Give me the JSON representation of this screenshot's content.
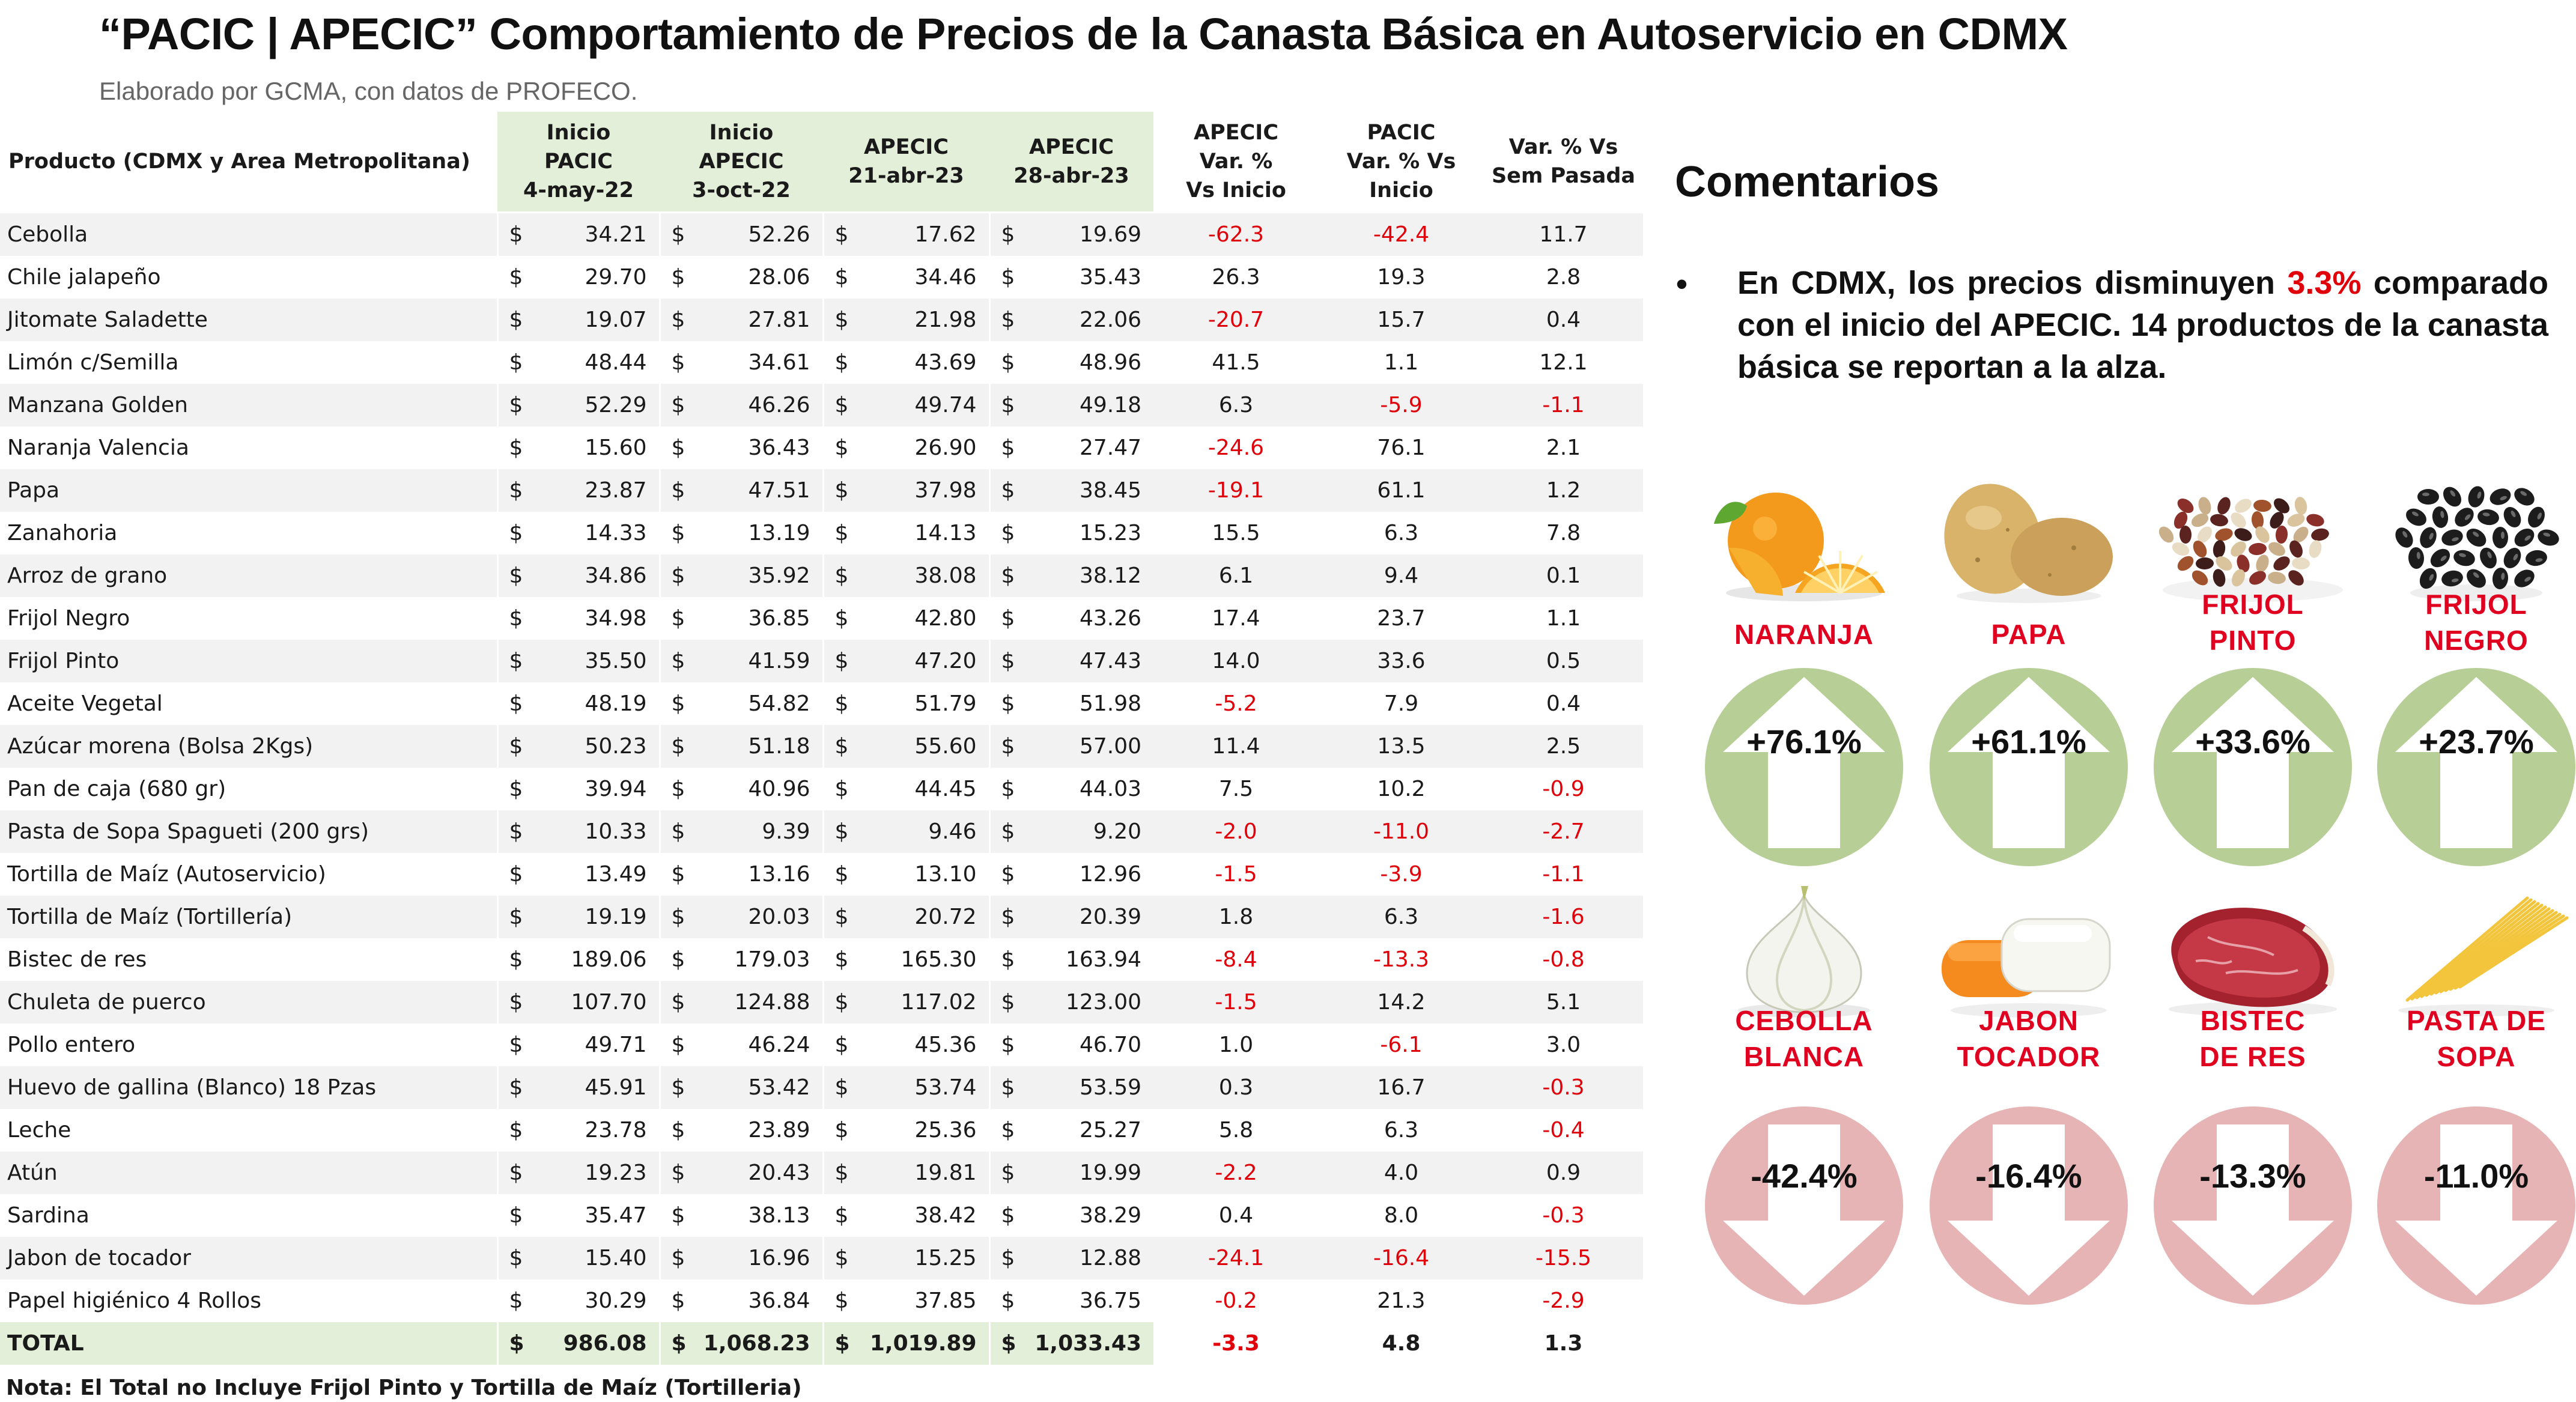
{
  "header": {
    "title": "“PACIC | APECIC” Comportamiento de Precios de la Canasta Básica en Autoservicio en CDMX",
    "subtitle": "Elaborado por GCMA, con datos de PROFECO."
  },
  "table": {
    "columns": [
      "Producto (CDMX y Area Metropolitana)",
      "Inicio PACIC 4-may-22",
      "Inicio APECIC 3-oct-22",
      "APECIC 21-abr-23",
      "APECIC 28-abr-23",
      "APECIC Var. % Vs Inicio",
      "PACIC Var. % Vs Inicio",
      "Var. % Vs Sem Pasada"
    ],
    "header_lines": [
      [
        "Producto (CDMX y Area Metropolitana)"
      ],
      [
        "Inicio",
        "PACIC",
        "4-may-22"
      ],
      [
        "Inicio",
        "APECIC",
        "3-oct-22"
      ],
      [
        "APECIC",
        "21-abr-23"
      ],
      [
        "APECIC",
        "28-abr-23"
      ],
      [
        "APECIC",
        "Var. %",
        "Vs Inicio"
      ],
      [
        "PACIC",
        "Var. % Vs",
        "Inicio"
      ],
      [
        "Var. % Vs",
        "Sem Pasada"
      ]
    ],
    "currency_symbol": "$",
    "rows": [
      [
        "Cebolla",
        "34.21",
        "52.26",
        "17.62",
        "19.69",
        "-62.3",
        "-42.4",
        "11.7"
      ],
      [
        "Chile jalapeño",
        "29.70",
        "28.06",
        "34.46",
        "35.43",
        "26.3",
        "19.3",
        "2.8"
      ],
      [
        "Jitomate Saladette",
        "19.07",
        "27.81",
        "21.98",
        "22.06",
        "-20.7",
        "15.7",
        "0.4"
      ],
      [
        "Limón c/Semilla",
        "48.44",
        "34.61",
        "43.69",
        "48.96",
        "41.5",
        "1.1",
        "12.1"
      ],
      [
        "Manzana Golden",
        "52.29",
        "46.26",
        "49.74",
        "49.18",
        "6.3",
        "-5.9",
        "-1.1"
      ],
      [
        "Naranja Valencia",
        "15.60",
        "36.43",
        "26.90",
        "27.47",
        "-24.6",
        "76.1",
        "2.1"
      ],
      [
        "Papa",
        "23.87",
        "47.51",
        "37.98",
        "38.45",
        "-19.1",
        "61.1",
        "1.2"
      ],
      [
        "Zanahoria",
        "14.33",
        "13.19",
        "14.13",
        "15.23",
        "15.5",
        "6.3",
        "7.8"
      ],
      [
        "Arroz de grano",
        "34.86",
        "35.92",
        "38.08",
        "38.12",
        "6.1",
        "9.4",
        "0.1"
      ],
      [
        "Frijol Negro",
        "34.98",
        "36.85",
        "42.80",
        "43.26",
        "17.4",
        "23.7",
        "1.1"
      ],
      [
        "Frijol Pinto",
        "35.50",
        "41.59",
        "47.20",
        "47.43",
        "14.0",
        "33.6",
        "0.5"
      ],
      [
        "Aceite Vegetal",
        "48.19",
        "54.82",
        "51.79",
        "51.98",
        "-5.2",
        "7.9",
        "0.4"
      ],
      [
        "Azúcar morena (Bolsa 2Kgs)",
        "50.23",
        "51.18",
        "55.60",
        "57.00",
        "11.4",
        "13.5",
        "2.5"
      ],
      [
        "Pan de caja (680 gr)",
        "39.94",
        "40.96",
        "44.45",
        "44.03",
        "7.5",
        "10.2",
        "-0.9"
      ],
      [
        "Pasta de Sopa Spagueti (200 grs)",
        "10.33",
        "9.39",
        "9.46",
        "9.20",
        "-2.0",
        "-11.0",
        "-2.7"
      ],
      [
        "Tortilla de Maíz (Autoservicio)",
        "13.49",
        "13.16",
        "13.10",
        "12.96",
        "-1.5",
        "-3.9",
        "-1.1"
      ],
      [
        "Tortilla de Maíz (Tortillería)",
        "19.19",
        "20.03",
        "20.72",
        "20.39",
        "1.8",
        "6.3",
        "-1.6"
      ],
      [
        "Bistec de res",
        "189.06",
        "179.03",
        "165.30",
        "163.94",
        "-8.4",
        "-13.3",
        "-0.8"
      ],
      [
        "Chuleta de puerco",
        "107.70",
        "124.88",
        "117.02",
        "123.00",
        "-1.5",
        "14.2",
        "5.1"
      ],
      [
        "Pollo entero",
        "49.71",
        "46.24",
        "45.36",
        "46.70",
        "1.0",
        "-6.1",
        "3.0"
      ],
      [
        "Huevo de gallina (Blanco) 18 Pzas",
        "45.91",
        "53.42",
        "53.74",
        "53.59",
        "0.3",
        "16.7",
        "-0.3"
      ],
      [
        "Leche",
        "23.78",
        "23.89",
        "25.36",
        "25.27",
        "5.8",
        "6.3",
        "-0.4"
      ],
      [
        "Atún",
        "19.23",
        "20.43",
        "19.81",
        "19.99",
        "-2.2",
        "4.0",
        "0.9"
      ],
      [
        "Sardina",
        "35.47",
        "38.13",
        "38.42",
        "38.29",
        "0.4",
        "8.0",
        "-0.3"
      ],
      [
        "Jabon de tocador",
        "15.40",
        "16.96",
        "15.25",
        "12.88",
        "-24.1",
        "-16.4",
        "-15.5"
      ],
      [
        "Papel higiénico 4 Rollos",
        "30.29",
        "36.84",
        "37.85",
        "36.75",
        "-0.2",
        "21.3",
        "-2.9"
      ]
    ],
    "total": [
      "TOTAL",
      "986.08",
      "1,068.23",
      "1,019.89",
      "1,033.43",
      "-3.3",
      "4.8",
      "1.3"
    ],
    "note": "Nota: El Total no Incluye Frijol Pinto y Tortilla de Maíz (Tortilleria)"
  },
  "comments": {
    "title": "Comentarios",
    "bullet_symbol": "•",
    "bullet_before": "En CDMX, los precios disminuyen ",
    "bullet_highlight": "3.3%",
    "bullet_after": " comparado con el inicio del APECIC. 14 productos de la canasta básica se reportan a la alza."
  },
  "highlights": {
    "up": [
      {
        "lines": [
          "NARANJA"
        ],
        "pct": "+76.1%",
        "icon": "orange-icon"
      },
      {
        "lines": [
          "PAPA"
        ],
        "pct": "+61.1%",
        "icon": "potato-icon"
      },
      {
        "lines": [
          "FRIJOL",
          "PINTO"
        ],
        "pct": "+33.6%",
        "icon": "pinto-beans-icon"
      },
      {
        "lines": [
          "FRIJOL",
          "NEGRO"
        ],
        "pct": "+23.7%",
        "icon": "black-beans-icon"
      }
    ],
    "down": [
      {
        "lines": [
          "CEBOLLA",
          "BLANCA"
        ],
        "pct": "-42.4%",
        "icon": "onion-icon"
      },
      {
        "lines": [
          "JABON",
          "TOCADOR"
        ],
        "pct": "-16.4%",
        "icon": "soap-icon"
      },
      {
        "lines": [
          "BISTEC",
          "DE RES"
        ],
        "pct": "-13.3%",
        "icon": "beef-icon"
      },
      {
        "lines": [
          "PASTA DE",
          "SOPA"
        ],
        "pct": "-11.0%",
        "icon": "pasta-icon"
      }
    ],
    "colors": {
      "up_circle": "#b7cf96",
      "down_circle": "#e6b4b4",
      "label_red": "#e00020",
      "negative_text": "#e0000a",
      "header_green": "#e3efd9"
    }
  }
}
